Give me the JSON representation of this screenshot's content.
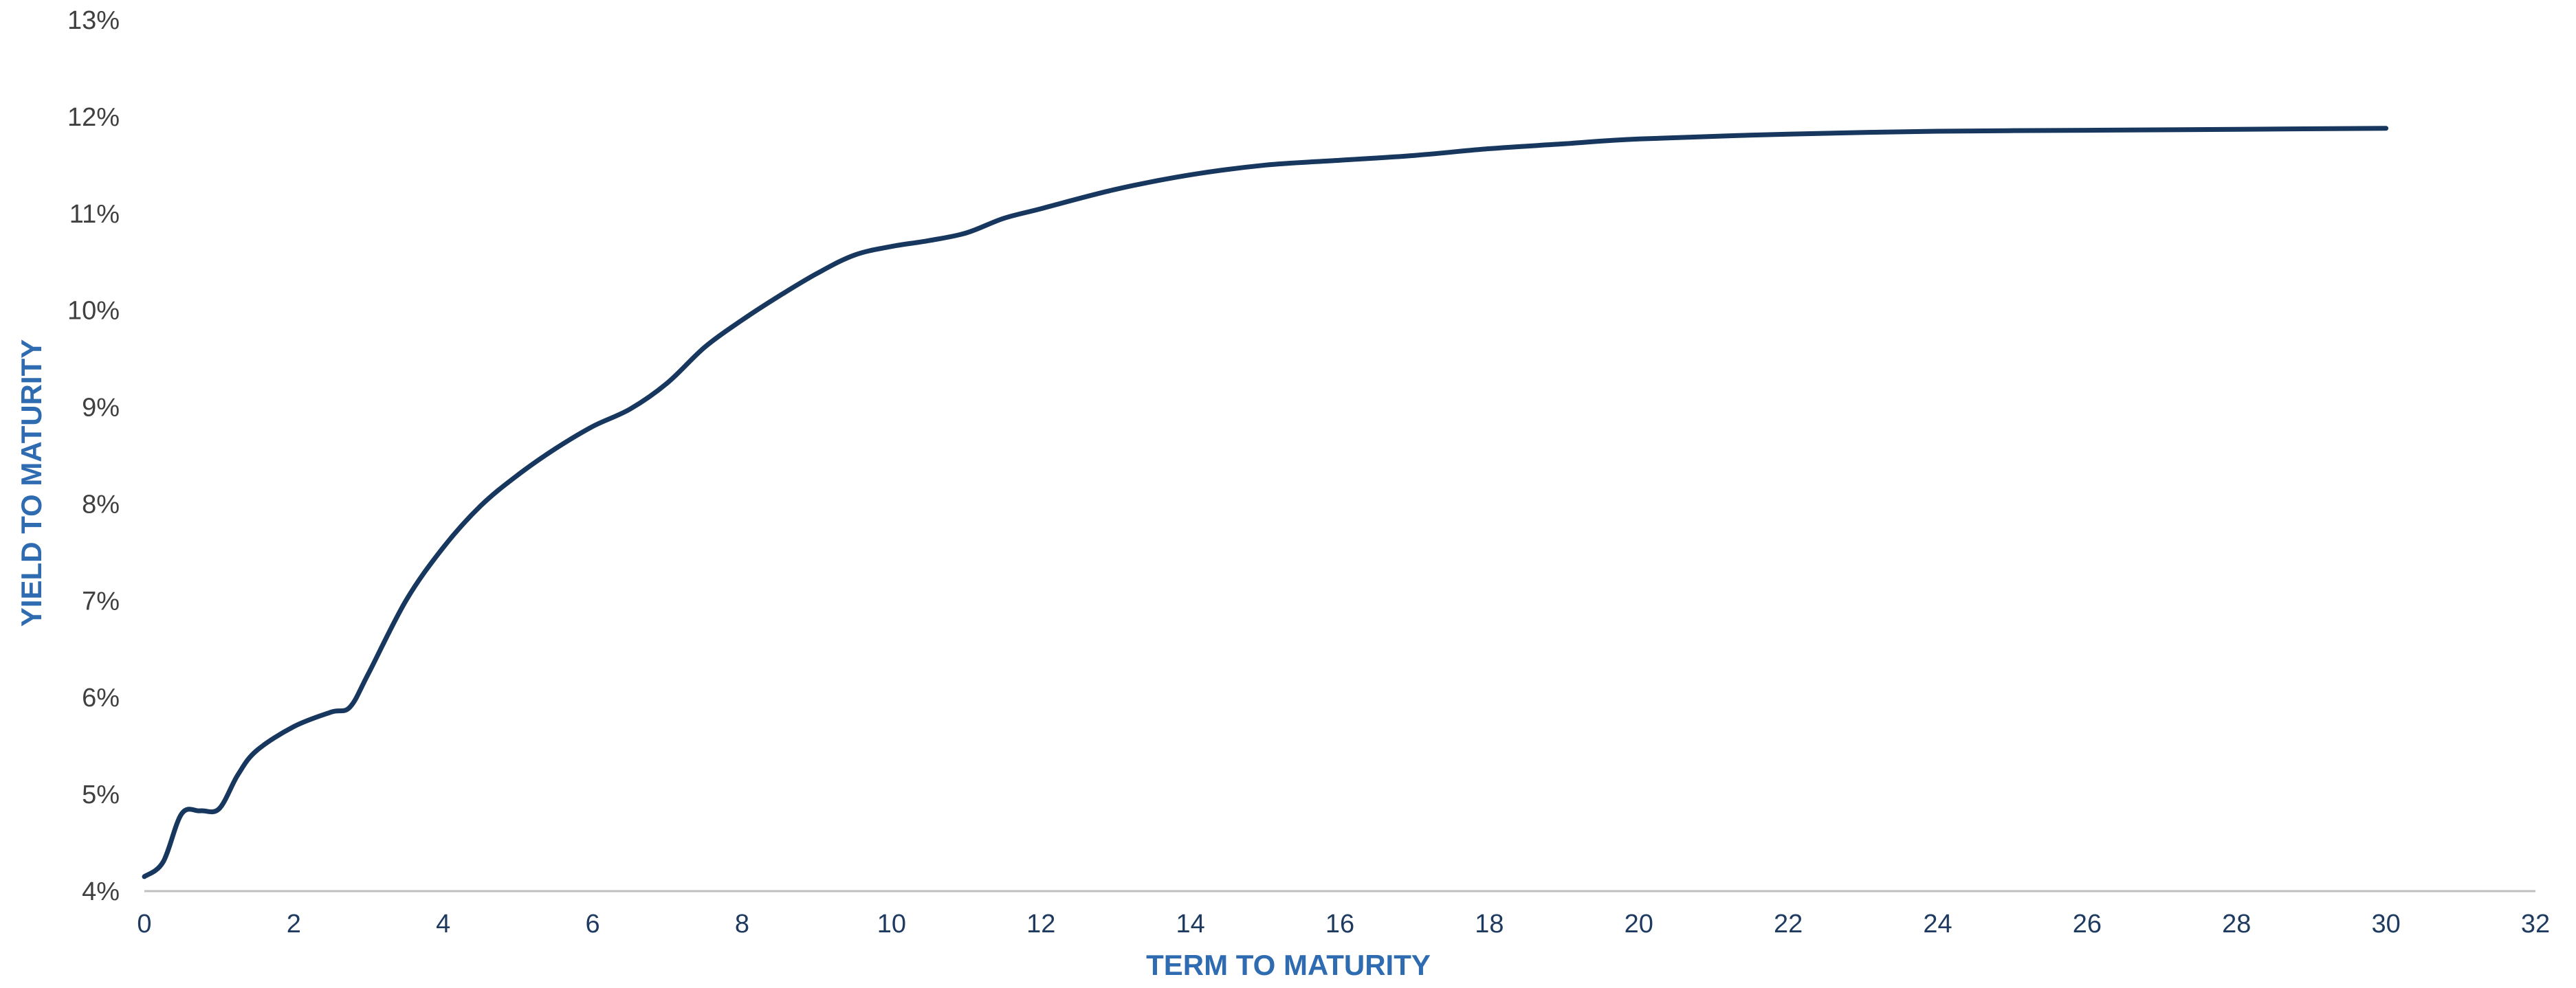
{
  "colors": {
    "line": "#17375e",
    "axis_title": "#2e6bb0",
    "x_tick": "#1f3a5f",
    "y_tick": "#404040",
    "axis_line": "#bfbfbf"
  },
  "chart_data": {
    "type": "line",
    "xlabel": "TERM TO MATURITY",
    "ylabel": "YIELD TO MATURITY",
    "xlim": [
      0,
      32
    ],
    "ylim": [
      4,
      13
    ],
    "x_ticks": [
      0,
      2,
      4,
      6,
      8,
      10,
      12,
      14,
      16,
      18,
      20,
      22,
      24,
      26,
      28,
      30,
      32
    ],
    "x_tick_labels": [
      "0",
      "2",
      "4",
      "6",
      "8",
      "10",
      "12",
      "14",
      "16",
      "18",
      "20",
      "22",
      "24",
      "26",
      "28",
      "30",
      "32"
    ],
    "y_ticks": [
      4,
      5,
      6,
      7,
      8,
      9,
      10,
      11,
      12,
      13
    ],
    "y_tick_labels": [
      "4%",
      "5%",
      "6%",
      "7%",
      "8%",
      "9%",
      "10%",
      "11%",
      "12%",
      "13%"
    ],
    "grid": false,
    "legend": "none",
    "series": [
      {
        "x": [
          0,
          0.25,
          0.5,
          0.75,
          1.0,
          1.25,
          1.5,
          2.0,
          2.5,
          2.75,
          3.0,
          3.5,
          4.0,
          4.5,
          5.0,
          5.5,
          6.0,
          6.5,
          7.0,
          7.5,
          8.0,
          8.5,
          9.0,
          9.5,
          10.0,
          10.5,
          11.0,
          11.5,
          12.0,
          13.0,
          14.0,
          15.0,
          16.0,
          17.0,
          18.0,
          19.0,
          20.0,
          22.0,
          24.0,
          26.0,
          28.0,
          30.0
        ],
        "y": [
          4.15,
          4.3,
          4.8,
          4.83,
          4.85,
          5.2,
          5.45,
          5.7,
          5.85,
          5.9,
          6.25,
          7.0,
          7.55,
          7.98,
          8.3,
          8.57,
          8.8,
          8.98,
          9.25,
          9.62,
          9.9,
          10.15,
          10.38,
          10.57,
          10.66,
          10.72,
          10.8,
          10.95,
          11.05,
          11.25,
          11.4,
          11.5,
          11.55,
          11.6,
          11.67,
          11.72,
          11.77,
          11.82,
          11.85,
          11.86,
          11.87,
          11.88
        ]
      }
    ]
  }
}
